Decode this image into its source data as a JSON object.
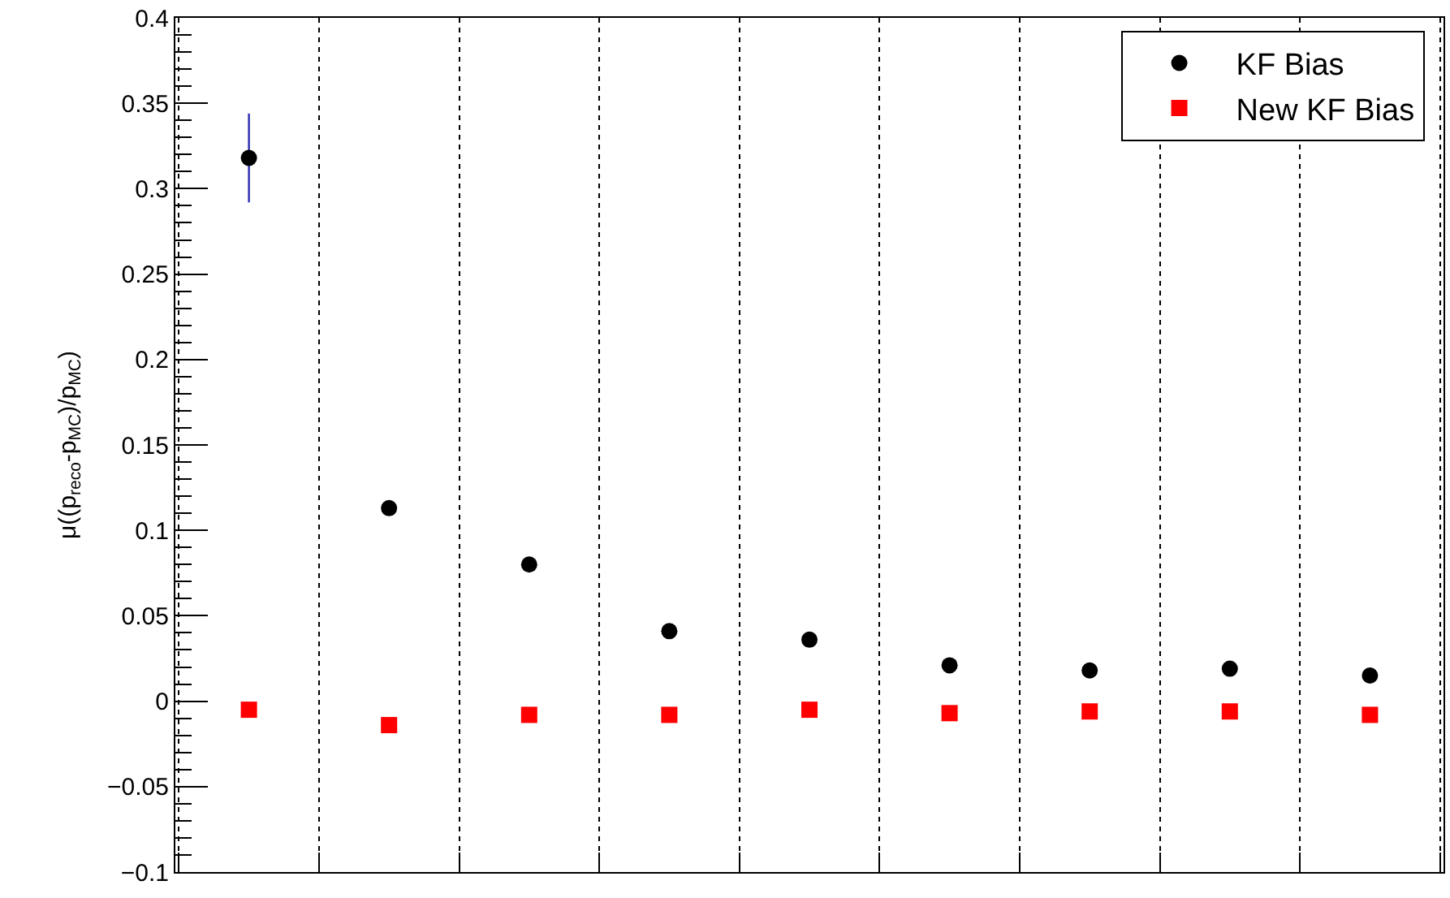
{
  "chart_data": {
    "type": "scatter",
    "ylabel": "μ((p$_{reco}$-p$_{MC}$)/p$_{MC}$)",
    "categories": [
      null,
      null,
      null,
      null,
      null,
      null,
      null,
      null,
      null
    ],
    "series": [
      {
        "name": "KF Bias",
        "color": "#000000",
        "marker": "circle",
        "values": [
          0.318,
          0.113,
          0.08,
          0.041,
          0.036,
          0.021,
          0.018,
          0.019,
          0.015
        ],
        "errors": [
          0.026,
          null,
          null,
          null,
          null,
          null,
          null,
          null,
          null
        ]
      },
      {
        "name": "New KF Bias",
        "color": "#ff0000",
        "marker": "square",
        "values": [
          -0.005,
          -0.014,
          -0.008,
          -0.008,
          -0.005,
          -0.007,
          -0.006,
          -0.006,
          -0.008
        ]
      }
    ],
    "ylim": [
      -0.1,
      0.4
    ],
    "yticks": [
      {
        "value": -0.1,
        "label": "−0.1"
      },
      {
        "value": -0.05,
        "label": "−0.05"
      },
      0,
      0.05,
      0.1,
      0.15,
      0.2,
      0.25,
      0.3,
      0.35,
      0.4
    ],
    "tick_labels": "y",
    "grid": "x",
    "legend": "top right"
  }
}
